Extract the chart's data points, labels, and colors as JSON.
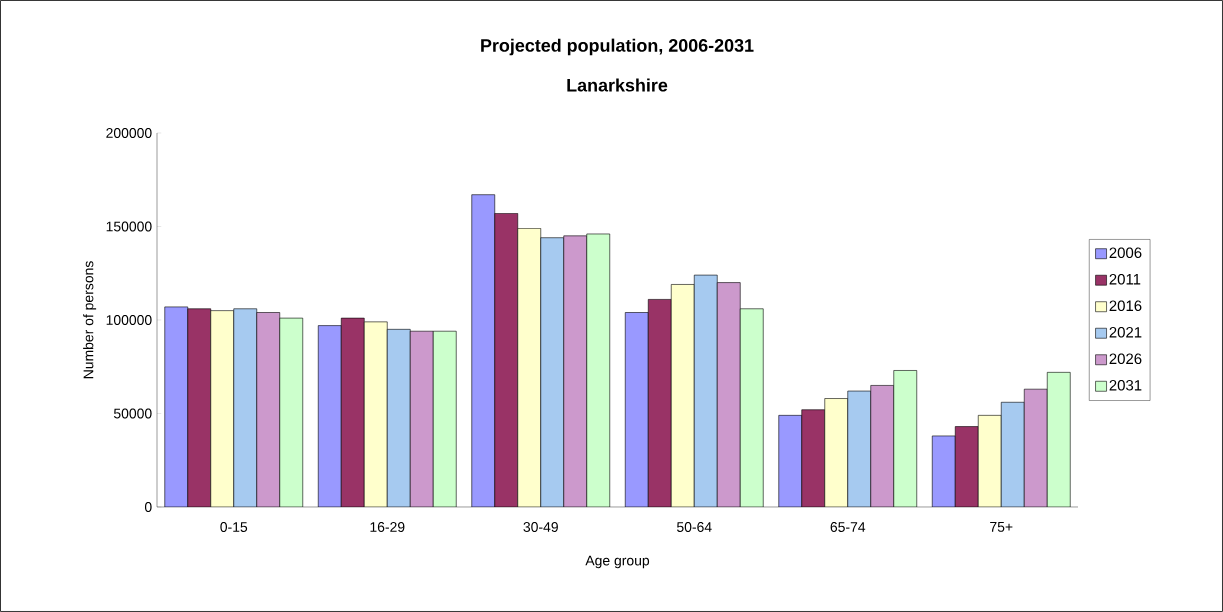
{
  "chart_data": {
    "type": "bar",
    "title": "Projected population, 2006-2031",
    "subtitle": "Lanarkshire",
    "xlabel": "Age group",
    "ylabel": "Number of persons",
    "categories": [
      "0-15",
      "16-29",
      "30-49",
      "50-64",
      "65-74",
      "75+"
    ],
    "series": [
      {
        "name": "2006",
        "color": "#9999ff",
        "values": [
          107000,
          97000,
          167000,
          104000,
          49000,
          38000
        ]
      },
      {
        "name": "2011",
        "color": "#993366",
        "values": [
          106000,
          101000,
          157000,
          111000,
          52000,
          43000
        ]
      },
      {
        "name": "2016",
        "color": "#ffffcc",
        "values": [
          105000,
          99000,
          149000,
          119000,
          58000,
          49000
        ]
      },
      {
        "name": "2021",
        "color": "#a6caf0",
        "values": [
          106000,
          95000,
          144000,
          124000,
          62000,
          56000
        ]
      },
      {
        "name": "2026",
        "color": "#cc99cc",
        "values": [
          104000,
          94000,
          145000,
          120000,
          65000,
          63000
        ]
      },
      {
        "name": "2031",
        "color": "#ccffcc",
        "values": [
          101000,
          94000,
          146000,
          106000,
          73000,
          72000
        ]
      }
    ],
    "ylim": [
      0,
      200000
    ],
    "yticks": [
      0,
      50000,
      100000,
      150000,
      200000
    ],
    "legend": "right",
    "grid": false
  }
}
